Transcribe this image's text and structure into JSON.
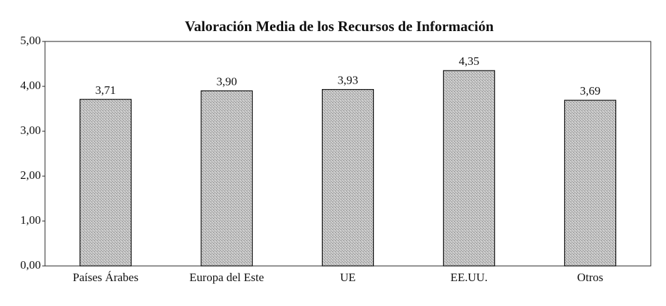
{
  "chart_data": {
    "type": "bar",
    "title": "Valoración Media de los Recursos de Información",
    "categories": [
      "Países Árabes",
      "Europa del Este",
      "UE",
      "EE.UU.",
      "Otros"
    ],
    "values": [
      3.71,
      3.9,
      3.93,
      4.35,
      3.69
    ],
    "value_labels": [
      "3,71",
      "3,90",
      "3,93",
      "4,35",
      "3,69"
    ],
    "color": "#b8b8b8",
    "ylim": [
      0,
      5
    ],
    "yticks": [
      {
        "value": 0,
        "label": "0,00"
      },
      {
        "value": 1,
        "label": "1,00"
      },
      {
        "value": 2,
        "label": "2,00"
      },
      {
        "value": 3,
        "label": "3,00"
      },
      {
        "value": 4,
        "label": "4,00"
      },
      {
        "value": 5,
        "label": "5,00"
      }
    ],
    "grid": false
  }
}
